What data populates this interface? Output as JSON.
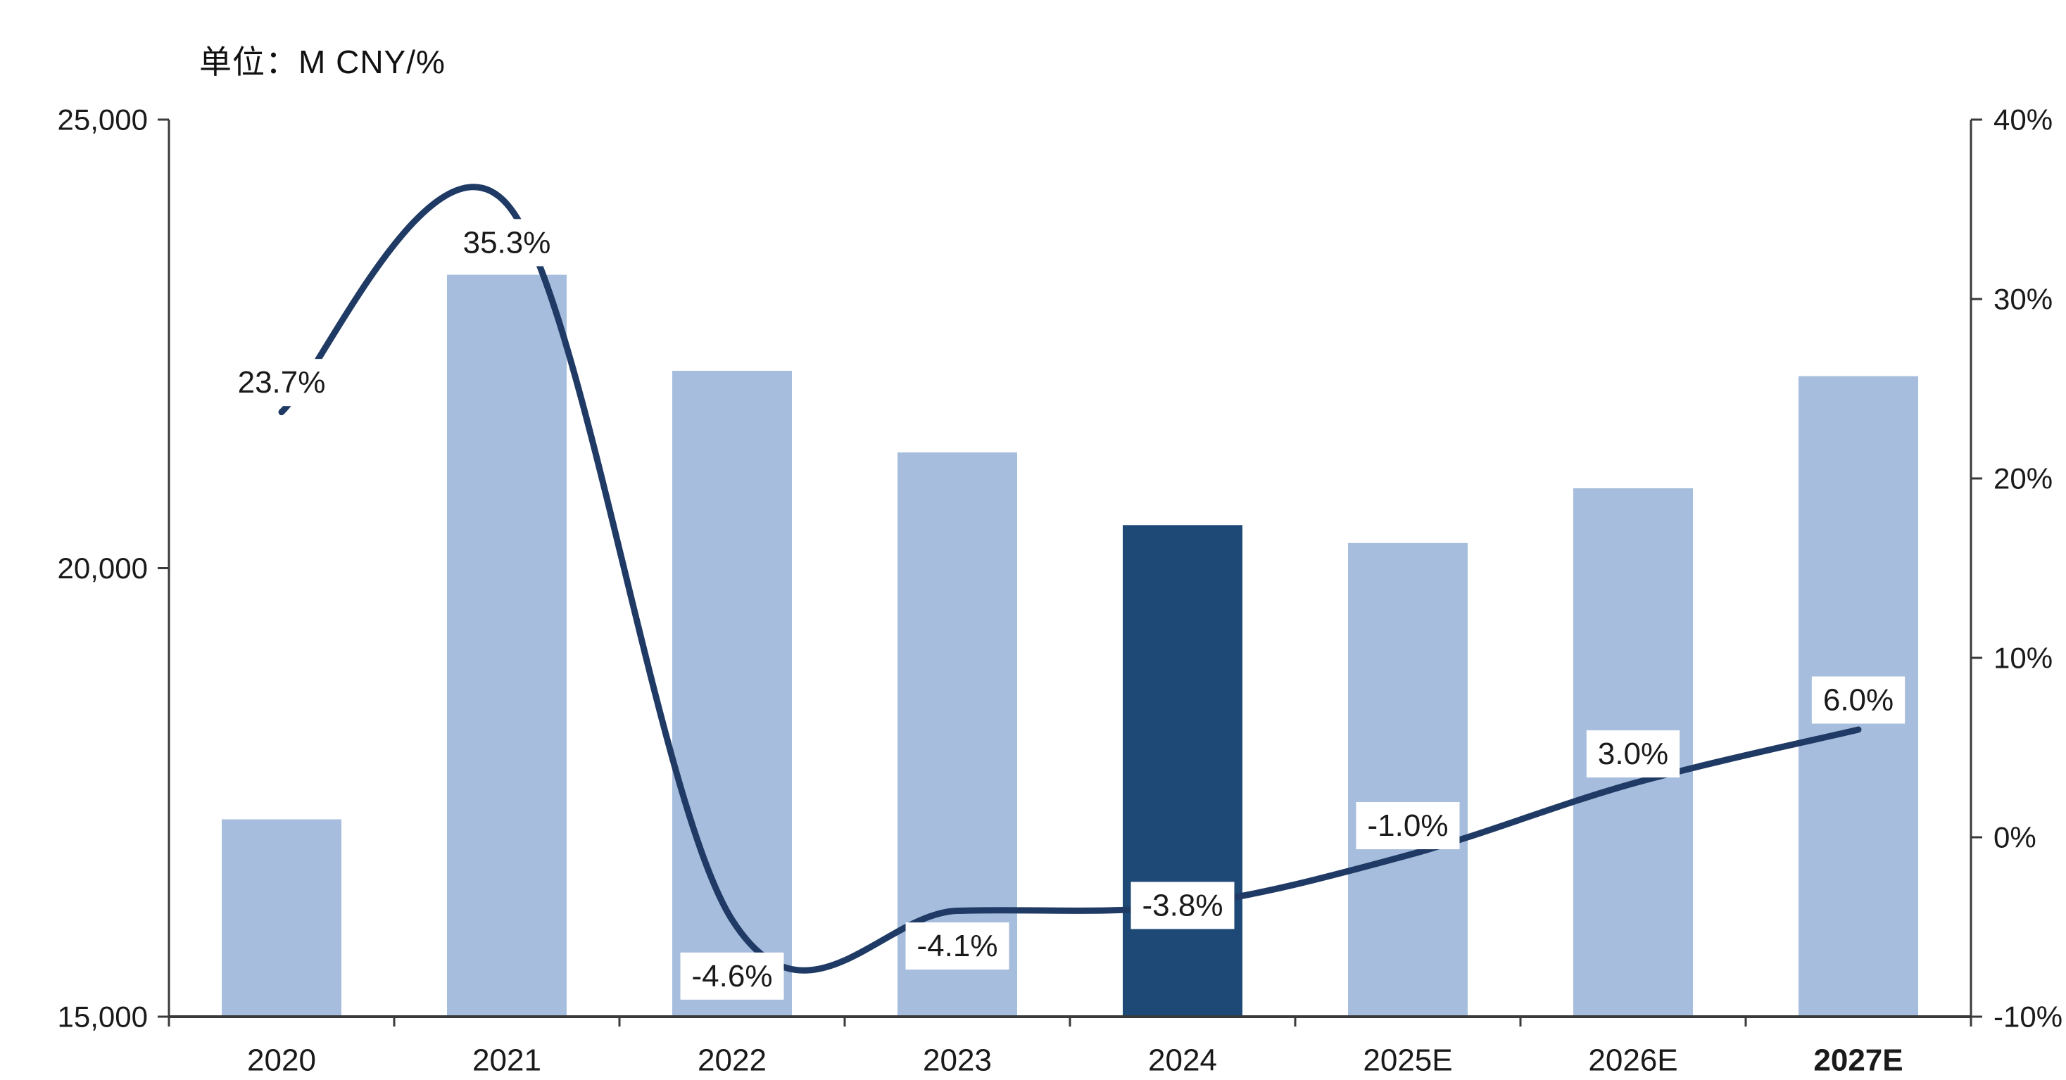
{
  "chart_data": {
    "type": "combo-bar-line",
    "unit_label": "单位：M CNY/%",
    "categories": [
      "2020",
      "2021",
      "2022",
      "2023",
      "2024",
      "2025E",
      "2026E",
      "2027E"
    ],
    "bold_categories": [
      "2027E"
    ],
    "highlight_index": 4,
    "series": [
      {
        "name": "revenue-bars",
        "type": "bar",
        "axis": "left",
        "values": [
          17200,
          23270,
          22200,
          21290,
          20480,
          20280,
          20890,
          22140
        ]
      },
      {
        "name": "yoy-growth-line",
        "type": "line",
        "axis": "right",
        "values": [
          23.7,
          35.3,
          -4.6,
          -4.1,
          -3.8,
          -1.0,
          3.0,
          6.0
        ],
        "labels": [
          "23.7%",
          "35.3%",
          "-4.6%",
          "-4.1%",
          "-3.8%",
          "-1.0%",
          "3.0%",
          "6.0%"
        ]
      }
    ],
    "label_dy": [
      -42,
      55,
      80,
      50,
      0,
      -42,
      -42,
      -42
    ],
    "left_axis": {
      "min": 15000,
      "max": 25000,
      "ticks": [
        {
          "value": 25000,
          "label": "25,000"
        },
        {
          "value": 20000,
          "label": "20,000"
        },
        {
          "value": 15000,
          "label": "15,000"
        }
      ]
    },
    "right_axis": {
      "min": -10,
      "max": 40,
      "ticks": [
        {
          "value": 40,
          "label": "40%"
        },
        {
          "value": 30,
          "label": "30%"
        },
        {
          "value": 20,
          "label": "20%"
        },
        {
          "value": 10,
          "label": "10%"
        },
        {
          "value": 0,
          "label": "0%"
        },
        {
          "value": -10,
          "label": "-10%"
        }
      ]
    },
    "colors": {
      "bar": "#a7bddd",
      "bar_highlight": "#1e4976",
      "line": "#1f3a64",
      "axis": "#3a3a3a",
      "text": "#1a1a1a",
      "label_text": "#1a1a1a",
      "label_bg": "#ffffff"
    },
    "grid": false,
    "legend": null
  }
}
